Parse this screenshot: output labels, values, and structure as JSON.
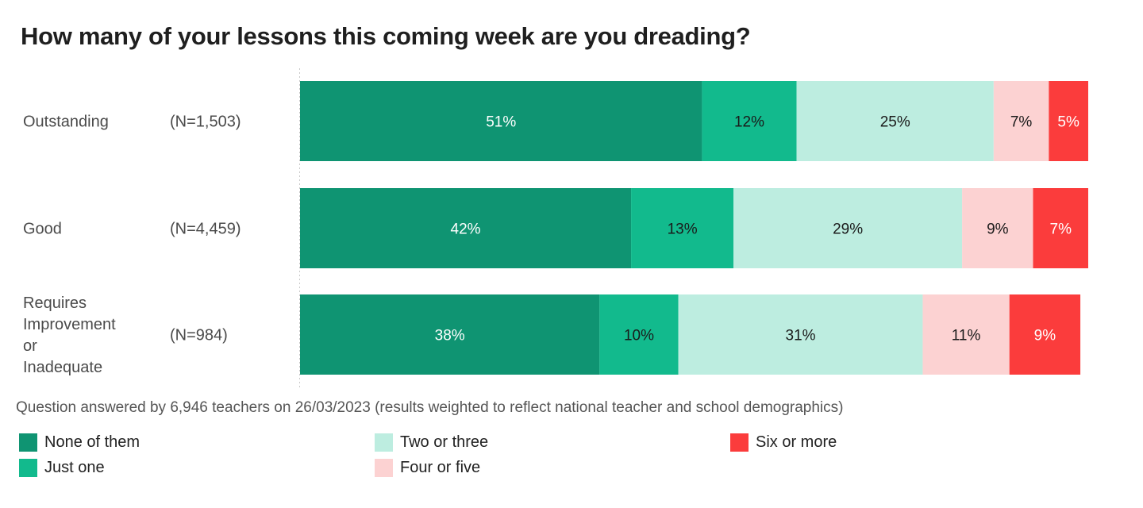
{
  "chart_data": {
    "type": "bar",
    "orientation": "horizontal",
    "stacked": true,
    "title": "How many of your lessons this coming week are you dreading?",
    "categories": [
      {
        "label": "Outstanding",
        "n": "(N=1,503)"
      },
      {
        "label": "Good",
        "n": "(N=4,459)"
      },
      {
        "label": "Requires Improvement or Inadequate",
        "n": "(N=984)"
      }
    ],
    "series": [
      {
        "name": "None of them",
        "color": "#0f9472",
        "text_color": "#ffffff",
        "values": [
          51,
          42,
          38
        ]
      },
      {
        "name": "Just one",
        "color": "#12ba8d",
        "text_color": "#1a1a1a",
        "values": [
          12,
          13,
          10
        ]
      },
      {
        "name": "Two or three",
        "color": "#bdede0",
        "text_color": "#1a1a1a",
        "values": [
          25,
          29,
          31
        ]
      },
      {
        "name": "Four or five",
        "color": "#fcd2d2",
        "text_color": "#1a1a1a",
        "values": [
          7,
          9,
          11
        ]
      },
      {
        "name": "Six or more",
        "color": "#fb3c3c",
        "text_color": "#ffffff",
        "values": [
          5,
          7,
          9
        ]
      }
    ],
    "value_suffix": "%",
    "xlim": [
      0,
      100
    ],
    "legend_position": "bottom",
    "footnote": "Question answered by 6,946 teachers on 26/03/2023 (results weighted to reflect national teacher and school demographics)"
  }
}
